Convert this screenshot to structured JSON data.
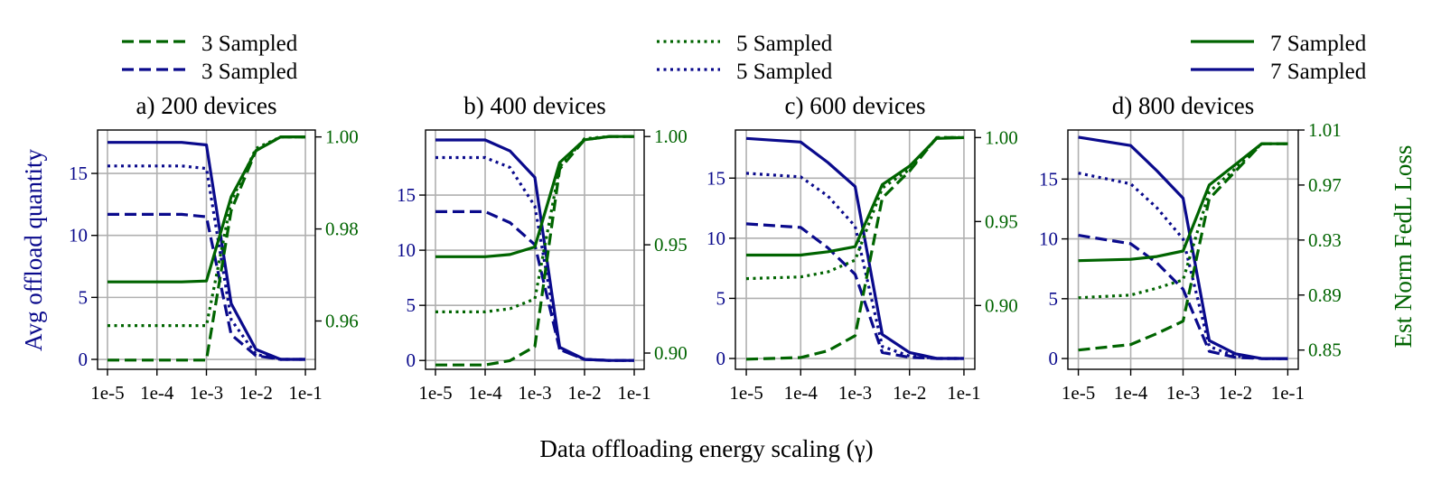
{
  "colors": {
    "green": "#006400",
    "blue": "#0a0a8c",
    "grid": "#b0b0b0",
    "text": "#000000"
  },
  "legend": [
    {
      "label": "3 Sampled",
      "color": "green",
      "style": "dashed"
    },
    {
      "label": "3 Sampled",
      "color": "blue",
      "style": "dashed"
    },
    {
      "label": "5 Sampled",
      "color": "green",
      "style": "dotted"
    },
    {
      "label": "5 Sampled",
      "color": "blue",
      "style": "dotted"
    },
    {
      "label": "7 Sampled",
      "color": "green",
      "style": "solid"
    },
    {
      "label": "7 Sampled",
      "color": "blue",
      "style": "solid"
    }
  ],
  "figure": {
    "xlabel": "Data offloading energy scaling (γ)",
    "ylabel_left": "Avg offload quantity",
    "ylabel_right": "Est Norm FedL Loss"
  },
  "chart_data": [
    {
      "type": "line",
      "title": "a) 200 devices",
      "x": [
        -5,
        -4,
        -3.5,
        -3,
        -2.5,
        -2,
        -1.5,
        -1
      ],
      "x_tick_values": [
        -5,
        -4,
        -3,
        -2,
        -1
      ],
      "x_tick_labels": [
        "1e-5",
        "1e-4",
        "1e-3",
        "1e-2",
        "1e-1"
      ],
      "xlim": [
        -5.2,
        -0.8
      ],
      "ylim_left": [
        -0.8,
        18.5
      ],
      "yticks_left": [
        0,
        5,
        10,
        15
      ],
      "ylim_right": [
        0.9495,
        1.0015
      ],
      "yticks_right": [
        0.96,
        0.98,
        1.0
      ],
      "yticklabels_right": [
        "0.96",
        "0.98",
        "1.00"
      ],
      "series": [
        {
          "name": "3 Sampled",
          "axis": "left",
          "color": "blue",
          "style": "dashed",
          "values": [
            11.7,
            11.7,
            11.7,
            11.5,
            2.0,
            0.3,
            0.0,
            0.0
          ]
        },
        {
          "name": "5 Sampled",
          "axis": "left",
          "color": "blue",
          "style": "dotted",
          "values": [
            15.6,
            15.6,
            15.6,
            15.4,
            3.2,
            0.4,
            0.0,
            0.0
          ]
        },
        {
          "name": "7 Sampled",
          "axis": "left",
          "color": "blue",
          "style": "solid",
          "values": [
            17.5,
            17.5,
            17.5,
            17.3,
            4.5,
            0.8,
            0.0,
            0.0
          ]
        },
        {
          "name": "3 Sampled",
          "axis": "right",
          "color": "green",
          "style": "dashed",
          "values": [
            0.9515,
            0.9515,
            0.9515,
            0.9515,
            0.984,
            0.997,
            1.0,
            1.0
          ]
        },
        {
          "name": "5 Sampled",
          "axis": "right",
          "color": "green",
          "style": "dotted",
          "values": [
            0.959,
            0.959,
            0.959,
            0.959,
            0.986,
            0.9975,
            1.0,
            1.0
          ]
        },
        {
          "name": "7 Sampled",
          "axis": "right",
          "color": "green",
          "style": "solid",
          "values": [
            0.9685,
            0.9685,
            0.9685,
            0.9687,
            0.987,
            0.997,
            1.0,
            1.0
          ]
        }
      ]
    },
    {
      "type": "line",
      "title": "b) 400 devices",
      "x": [
        -5,
        -4,
        -3.5,
        -3,
        -2.5,
        -2,
        -1.5,
        -1
      ],
      "x_tick_values": [
        -5,
        -4,
        -3,
        -2,
        -1
      ],
      "x_tick_labels": [
        "1e-5",
        "1e-4",
        "1e-3",
        "1e-2",
        "1e-1"
      ],
      "xlim": [
        -5.2,
        -0.8
      ],
      "ylim_left": [
        -0.8,
        20.9
      ],
      "yticks_left": [
        0,
        5,
        10,
        15
      ],
      "ylim_right": [
        0.8925,
        1.003
      ],
      "yticks_right": [
        0.9,
        0.95,
        1.0
      ],
      "yticklabels_right": [
        "0.90",
        "0.95",
        "1.00"
      ],
      "series": [
        {
          "name": "3 Sampled",
          "axis": "left",
          "color": "blue",
          "style": "dashed",
          "values": [
            13.5,
            13.5,
            12.5,
            10.5,
            1.0,
            0.1,
            0.0,
            0.0
          ]
        },
        {
          "name": "5 Sampled",
          "axis": "left",
          "color": "blue",
          "style": "dotted",
          "values": [
            18.4,
            18.4,
            17.5,
            14.0,
            1.0,
            0.1,
            0.0,
            0.0
          ]
        },
        {
          "name": "7 Sampled",
          "axis": "left",
          "color": "blue",
          "style": "solid",
          "values": [
            20.0,
            20.0,
            19.0,
            16.6,
            1.2,
            0.1,
            0.0,
            0.0
          ]
        },
        {
          "name": "3 Sampled",
          "axis": "right",
          "color": "green",
          "style": "dashed",
          "values": [
            0.8945,
            0.8945,
            0.8965,
            0.903,
            0.985,
            0.9985,
            1.0,
            1.0
          ]
        },
        {
          "name": "5 Sampled",
          "axis": "right",
          "color": "green",
          "style": "dotted",
          "values": [
            0.919,
            0.919,
            0.9205,
            0.925,
            0.986,
            0.999,
            1.0,
            1.0
          ]
        },
        {
          "name": "7 Sampled",
          "axis": "right",
          "color": "green",
          "style": "solid",
          "values": [
            0.9445,
            0.9445,
            0.9455,
            0.949,
            0.988,
            0.9985,
            1.0,
            1.0
          ]
        }
      ]
    },
    {
      "type": "line",
      "title": "c) 600 devices",
      "x": [
        -5,
        -4,
        -3.5,
        -3,
        -2.5,
        -2,
        -1.5,
        -1
      ],
      "x_tick_values": [
        -5,
        -4,
        -3,
        -2,
        -1
      ],
      "x_tick_labels": [
        "1e-5",
        "1e-4",
        "1e-3",
        "1e-2",
        "1e-1"
      ],
      "xlim": [
        -5.2,
        -0.8
      ],
      "ylim_left": [
        -0.9,
        19.0
      ],
      "yticks_left": [
        0,
        5,
        10,
        15
      ],
      "ylim_right": [
        0.862,
        1.0045
      ],
      "yticks_right": [
        0.9,
        0.95,
        1.0
      ],
      "yticklabels_right": [
        "0.90",
        "0.95",
        "1.00"
      ],
      "series": [
        {
          "name": "3 Sampled",
          "axis": "left",
          "color": "blue",
          "style": "dashed",
          "values": [
            11.2,
            10.9,
            9.2,
            7.0,
            0.5,
            0.1,
            0.0,
            0.0
          ]
        },
        {
          "name": "5 Sampled",
          "axis": "left",
          "color": "blue",
          "style": "dotted",
          "values": [
            15.4,
            15.1,
            13.5,
            11.0,
            1.0,
            0.2,
            0.0,
            0.0
          ]
        },
        {
          "name": "7 Sampled",
          "axis": "left",
          "color": "blue",
          "style": "solid",
          "values": [
            18.3,
            18.0,
            16.3,
            14.3,
            2.0,
            0.5,
            0.0,
            0.0
          ]
        },
        {
          "name": "3 Sampled",
          "axis": "right",
          "color": "green",
          "style": "dashed",
          "values": [
            0.868,
            0.869,
            0.873,
            0.882,
            0.964,
            0.98,
            1.0,
            1.0
          ]
        },
        {
          "name": "5 Sampled",
          "axis": "right",
          "color": "green",
          "style": "dotted",
          "values": [
            0.916,
            0.917,
            0.92,
            0.927,
            0.97,
            0.981,
            1.0,
            1.0
          ]
        },
        {
          "name": "7 Sampled",
          "axis": "right",
          "color": "green",
          "style": "solid",
          "values": [
            0.93,
            0.93,
            0.932,
            0.935,
            0.972,
            0.983,
            0.9995,
            1.0
          ]
        }
      ]
    },
    {
      "type": "line",
      "title": "d) 800 devices",
      "x": [
        -5,
        -4,
        -3.5,
        -3,
        -2.5,
        -2,
        -1.5,
        -1
      ],
      "x_tick_values": [
        -5,
        -4,
        -3,
        -2,
        -1
      ],
      "x_tick_labels": [
        "1e-5",
        "1e-4",
        "1e-3",
        "1e-2",
        "1e-1"
      ],
      "xlim": [
        -5.2,
        -0.8
      ],
      "ylim_left": [
        -0.9,
        19.1
      ],
      "yticks_left": [
        0,
        5,
        10,
        15
      ],
      "ylim_right": [
        0.836,
        1.01
      ],
      "yticks_right": [
        0.85,
        0.89,
        0.93,
        0.97,
        1.01
      ],
      "yticklabels_right": [
        "0.85",
        "0.89",
        "0.93",
        "0.97",
        "1.01"
      ],
      "series": [
        {
          "name": "3 Sampled",
          "axis": "left",
          "color": "blue",
          "style": "dashed",
          "values": [
            10.3,
            9.6,
            8.0,
            5.8,
            0.6,
            0.1,
            0.0,
            0.0
          ]
        },
        {
          "name": "5 Sampled",
          "axis": "left",
          "color": "blue",
          "style": "dotted",
          "values": [
            15.5,
            14.6,
            12.6,
            10.0,
            1.0,
            0.2,
            0.0,
            0.0
          ]
        },
        {
          "name": "7 Sampled",
          "axis": "left",
          "color": "blue",
          "style": "solid",
          "values": [
            18.5,
            17.8,
            15.7,
            13.4,
            1.5,
            0.4,
            0.0,
            0.0
          ]
        },
        {
          "name": "3 Sampled",
          "axis": "right",
          "color": "green",
          "style": "dashed",
          "values": [
            0.85,
            0.854,
            0.862,
            0.871,
            0.96,
            0.98,
            1.0,
            1.0
          ]
        },
        {
          "name": "5 Sampled",
          "axis": "right",
          "color": "green",
          "style": "dotted",
          "values": [
            0.888,
            0.89,
            0.895,
            0.901,
            0.965,
            0.982,
            1.0,
            1.0
          ]
        },
        {
          "name": "7 Sampled",
          "axis": "right",
          "color": "green",
          "style": "solid",
          "values": [
            0.915,
            0.916,
            0.918,
            0.922,
            0.97,
            0.985,
            1.0,
            1.0
          ]
        }
      ]
    }
  ]
}
